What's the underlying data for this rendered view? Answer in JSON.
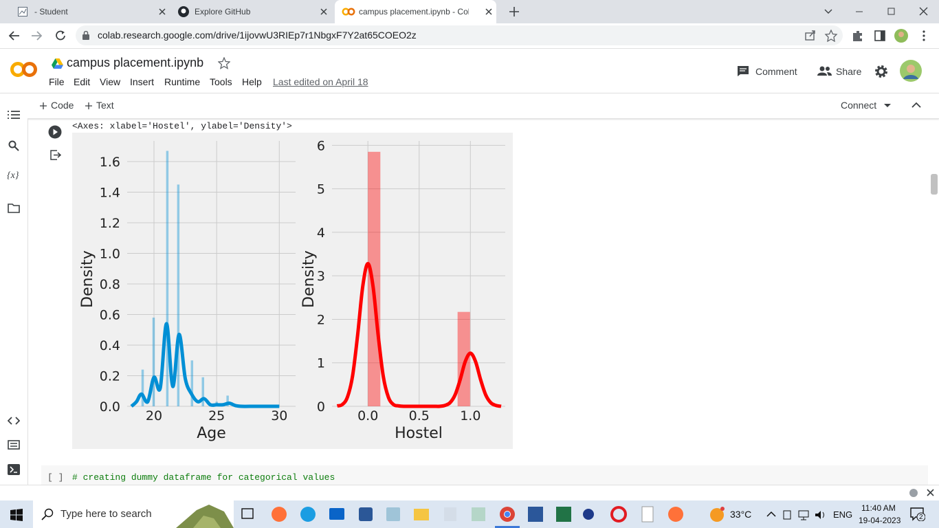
{
  "browser": {
    "tabs": [
      "- Student",
      "Explore GitHub",
      "campus placement.ipynb - Colab"
    ],
    "url": "colab.research.google.com/drive/1ijovwU3RIEp7r1NbgxF7Y2at65COEO2z"
  },
  "notebook": {
    "title": "campus placement.ipynb",
    "menu": [
      "File",
      "Edit",
      "View",
      "Insert",
      "Runtime",
      "Tools",
      "Help"
    ],
    "last_edited": "Last edited on April 18",
    "comment": "Comment",
    "share": "Share",
    "add_code": "Code",
    "add_text": "Text",
    "connect": "Connect",
    "sidebar_variables": "{x}",
    "output": "<Axes: xlabel='Hostel', ylabel='Density'>",
    "next_cell": {
      "prompt": "[ ]",
      "code": "# creating dummy dataframe for categorical values"
    }
  },
  "chart_data": [
    {
      "type": "histogram",
      "xlabel": "Age",
      "ylabel": "Density",
      "color": "#008fd5",
      "grid": true,
      "bins": [
        19,
        19.21875,
        19.4375,
        19.65625,
        19.875,
        20.09375,
        20.3125,
        20.53125,
        20.75,
        20.96875,
        21.1875,
        21.40625,
        21.625,
        21.84375,
        22.0625,
        22.28125,
        22.5,
        22.71875,
        22.9375,
        23.15625,
        23.375,
        23.59375,
        23.8125,
        24.03125,
        24.25,
        24.46875,
        24.6875,
        24.90625,
        25.125,
        25.34375,
        25.5625,
        25.78125,
        26
      ],
      "values": [
        0.24,
        0,
        0,
        0,
        0.58,
        0,
        0,
        0,
        0,
        1.67,
        0,
        0,
        0,
        1.45,
        0,
        0,
        0,
        0,
        0.3,
        0,
        0,
        0,
        0.19,
        0,
        0,
        0,
        0,
        0.03,
        0,
        0,
        0,
        0.07
      ],
      "kde": {
        "x": [
          18.2,
          18.6,
          19,
          19.5,
          20,
          20.5,
          21,
          21.5,
          22,
          22.5,
          23,
          23.5,
          24,
          24.5,
          25,
          25.5,
          26,
          26.5,
          27,
          28,
          29,
          30
        ],
        "values": [
          0,
          0.03,
          0.08,
          0.03,
          0.19,
          0.12,
          0.54,
          0.13,
          0.47,
          0.18,
          0.08,
          0.03,
          0.05,
          0.01,
          0.01,
          0.01,
          0.02,
          0.005,
          0,
          0,
          0,
          0
        ]
      },
      "xlim": [
        17.86,
        31.3
      ],
      "ylim": [
        0,
        1.735
      ],
      "xticks": [
        20,
        25,
        30
      ],
      "yticks": [
        {
          "value": 0,
          "label": "0.0"
        },
        0.2,
        0.4,
        0.6,
        0.8,
        {
          "value": 1,
          "label": "1.0"
        },
        1.2,
        1.4,
        1.6
      ]
    },
    {
      "type": "histogram",
      "xlabel": "Hostel",
      "ylabel": "Density",
      "color": "#ff0000",
      "grid": true,
      "bins": [
        0,
        0.125,
        0.25,
        0.375,
        0.5,
        0.625,
        0.75,
        0.875,
        1
      ],
      "values": [
        5.85,
        0,
        0,
        0,
        0,
        0,
        0,
        2.17
      ],
      "kde": {
        "x": [
          -0.3,
          -0.25,
          -0.2,
          -0.15,
          -0.1,
          -0.05,
          0,
          0.05,
          0.1,
          0.15,
          0.2,
          0.25,
          0.3,
          0.35,
          0.4,
          0.45,
          0.5,
          0.55,
          0.6,
          0.65,
          0.7,
          0.75,
          0.8,
          0.85,
          0.9,
          0.95,
          1,
          1.05,
          1.1,
          1.15,
          1.2,
          1.25,
          1.3
        ],
        "values": [
          0.01,
          0.04,
          0.21,
          0.69,
          1.64,
          2.76,
          3.28,
          2.76,
          1.64,
          0.69,
          0.21,
          0.04,
          0.01,
          0,
          0,
          0,
          0,
          0,
          0,
          0,
          0,
          0.02,
          0.08,
          0.26,
          0.61,
          1.03,
          1.22,
          1.03,
          0.61,
          0.26,
          0.08,
          0.02,
          0
        ]
      },
      "xlim": [
        -0.35,
        1.34
      ],
      "ylim": [
        0,
        6.1
      ],
      "xticks": [
        {
          "value": 0,
          "label": "0.0"
        },
        0.5,
        {
          "value": 1,
          "label": "1.0"
        }
      ],
      "yticks": [
        0,
        1,
        2,
        3,
        4,
        5,
        6
      ]
    }
  ],
  "taskbar": {
    "search": "Type here to search",
    "weather": "33°C",
    "language": "ENG",
    "time": "11:40 AM",
    "date": "19-04-2023",
    "notifications": 2
  }
}
